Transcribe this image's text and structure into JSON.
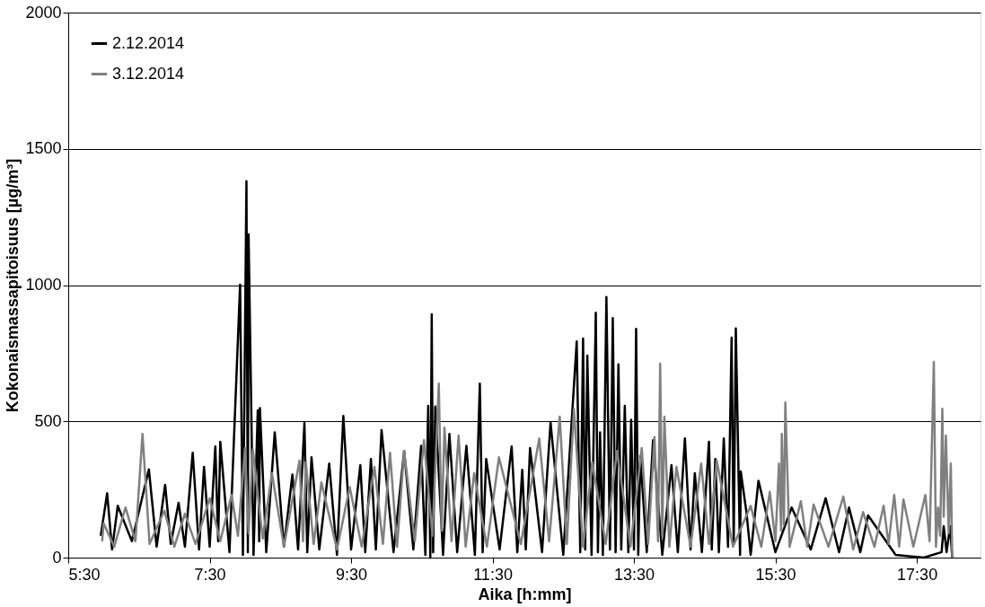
{
  "chart_data": {
    "type": "line",
    "xlabel": "Aika [h:mm]",
    "ylabel": "Kokonaismassapitoisuus [µg/m³]",
    "xlim": [
      5.5,
      18.4
    ],
    "xticks": [
      {
        "value": 5.5,
        "label": "5:30"
      },
      {
        "value": 7.5,
        "label": "7:30"
      },
      {
        "value": 9.5,
        "label": "9:30"
      },
      {
        "value": 11.5,
        "label": "11:30"
      },
      {
        "value": 13.5,
        "label": "13:30"
      },
      {
        "value": 15.5,
        "label": "15:30"
      },
      {
        "value": 17.5,
        "label": "17:30"
      }
    ],
    "ylim": [
      0,
      2000
    ],
    "yticks": [
      0,
      500,
      1000,
      1500,
      2000
    ],
    "grid": "y",
    "legend": "top left",
    "marker": "none",
    "line_style": "solid",
    "series": [
      {
        "name": "2.12.2014",
        "color": "#000000",
        "x": [
          5.96,
          6.05,
          6.12,
          6.2,
          6.4,
          6.64,
          6.75,
          6.87,
          6.95,
          7.06,
          7.15,
          7.26,
          7.35,
          7.42,
          7.5,
          7.58,
          7.62,
          7.65,
          7.78,
          7.93,
          7.97,
          8.02,
          8.04,
          8.05,
          8.12,
          8.18,
          8.2,
          8.21,
          8.3,
          8.42,
          8.55,
          8.67,
          8.75,
          8.84,
          8.88,
          8.94,
          9.05,
          9.19,
          9.3,
          9.39,
          9.5,
          9.63,
          9.7,
          9.78,
          9.85,
          9.93,
          10.1,
          10.25,
          10.38,
          10.49,
          10.55,
          10.59,
          10.62,
          10.64,
          10.66,
          10.69,
          10.8,
          10.89,
          11.0,
          11.13,
          11.25,
          11.32,
          11.36,
          11.41,
          11.6,
          11.77,
          11.85,
          11.92,
          11.97,
          12.03,
          12.2,
          12.32,
          12.5,
          12.69,
          12.74,
          12.78,
          12.81,
          12.84,
          12.9,
          12.96,
          12.99,
          13.02,
          13.06,
          13.11,
          13.16,
          13.2,
          13.24,
          13.28,
          13.32,
          13.37,
          13.42,
          13.46,
          13.5,
          13.53,
          13.56,
          13.59,
          13.68,
          13.77,
          13.9,
          14.03,
          14.12,
          14.22,
          14.3,
          14.36,
          14.46,
          14.56,
          14.6,
          14.65,
          14.7,
          14.77,
          14.83,
          14.88,
          14.91,
          14.94,
          15.0,
          15.01,
          15.09,
          15.15,
          15.26,
          15.5,
          15.73,
          16.0,
          16.21,
          16.4,
          16.54,
          16.7,
          16.81,
          17.2,
          17.6,
          17.85,
          17.88,
          17.92,
          17.97,
          18.0
        ],
        "values": [
          80,
          236,
          30,
          190,
          60,
          324,
          40,
          267,
          50,
          201,
          40,
          385,
          30,
          333,
          40,
          408,
          60,
          425,
          20,
          1002,
          10,
          1381,
          20,
          1186,
          10,
          540,
          60,
          549,
          20,
          460,
          40,
          305,
          30,
          494,
          20,
          368,
          30,
          345,
          10,
          520,
          30,
          339,
          20,
          362,
          30,
          468,
          20,
          391,
          30,
          410,
          10,
          557,
          0,
          893,
          20,
          554,
          10,
          454,
          20,
          410,
          10,
          638,
          20,
          362,
          30,
          408,
          20,
          322,
          30,
          402,
          20,
          496,
          10,
          793,
          20,
          804,
          30,
          741,
          10,
          899,
          20,
          460,
          10,
          956,
          30,
          879,
          20,
          709,
          30,
          557,
          20,
          506,
          30,
          839,
          10,
          373,
          20,
          431,
          10,
          339,
          20,
          437,
          30,
          310,
          20,
          425,
          30,
          362,
          20,
          437,
          40,
          807,
          50,
          841,
          10,
          316,
          167,
          10,
          282,
          20,
          184,
          30,
          218,
          20,
          184,
          20,
          155,
          10,
          0,
          20,
          115,
          20,
          115,
          0
        ]
      },
      {
        "name": "3.12.2014",
        "color": "#808080",
        "x": [
          5.98,
          6.0,
          6.15,
          6.31,
          6.45,
          6.55,
          6.65,
          6.86,
          7.0,
          7.15,
          7.3,
          7.5,
          7.65,
          7.81,
          7.9,
          8.0,
          8.05,
          8.11,
          8.25,
          8.38,
          8.55,
          8.77,
          8.82,
          8.86,
          8.97,
          9.08,
          9.3,
          9.48,
          9.65,
          9.83,
          9.95,
          10.05,
          10.15,
          10.25,
          10.4,
          10.53,
          10.65,
          10.74,
          10.78,
          10.82,
          10.92,
          11.02,
          11.12,
          11.24,
          11.42,
          11.59,
          11.9,
          12.16,
          12.3,
          12.45,
          12.55,
          12.65,
          12.78,
          12.91,
          13.1,
          13.26,
          13.45,
          13.61,
          13.7,
          13.79,
          13.84,
          13.87,
          13.9,
          13.93,
          14.0,
          14.1,
          14.3,
          14.45,
          14.56,
          14.67,
          14.9,
          15.15,
          15.3,
          15.42,
          15.5,
          15.55,
          15.58,
          15.59,
          15.62,
          15.64,
          15.7,
          15.86,
          15.95,
          16.04,
          16.25,
          16.46,
          16.6,
          16.74,
          16.9,
          17.03,
          17.1,
          17.18,
          17.25,
          17.31,
          17.45,
          17.62,
          17.68,
          17.74,
          17.77,
          17.8,
          17.83,
          17.86,
          17.88,
          17.91,
          17.95,
          17.98,
          18.0
        ],
        "values": [
          60,
          126,
          40,
          184,
          60,
          454,
          50,
          172,
          40,
          161,
          50,
          218,
          60,
          230,
          80,
          402,
          90,
          396,
          70,
          310,
          40,
          356,
          60,
          350,
          50,
          276,
          30,
          259,
          40,
          333,
          50,
          385,
          40,
          391,
          60,
          431,
          80,
          638,
          100,
          477,
          60,
          448,
          40,
          310,
          40,
          368,
          50,
          437,
          60,
          517,
          50,
          546,
          40,
          350,
          50,
          391,
          40,
          402,
          50,
          442,
          60,
          712,
          80,
          517,
          40,
          333,
          40,
          345,
          50,
          356,
          40,
          190,
          40,
          241,
          60,
          345,
          100,
          454,
          120,
          569,
          40,
          207,
          40,
          195,
          40,
          224,
          30,
          167,
          40,
          190,
          50,
          230,
          40,
          213,
          40,
          230,
          60,
          718,
          40,
          184,
          80,
          546,
          150,
          448,
          90,
          345,
          0
        ]
      }
    ]
  }
}
